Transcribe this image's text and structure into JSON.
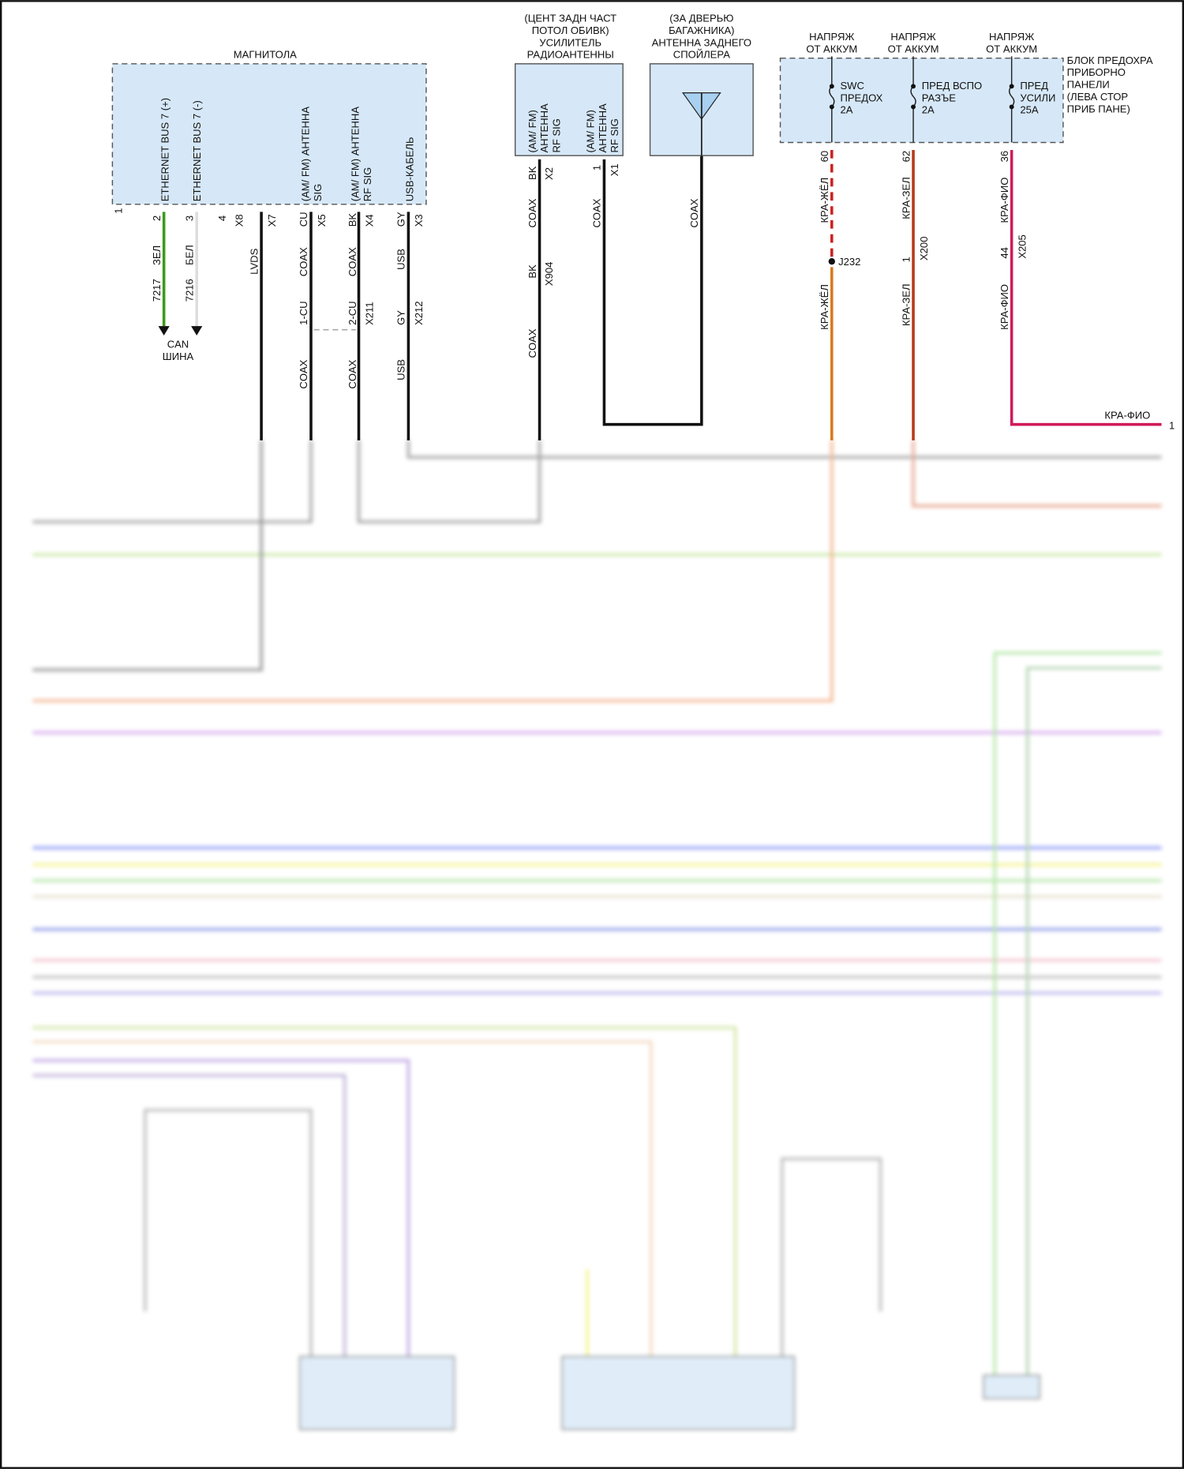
{
  "head_unit": {
    "title": "МАГНИТОЛА",
    "pins": [
      {
        "label": "ETHERNET BUS 7 (+)"
      },
      {
        "label": "ETHERNET BUS 7 (-)"
      },
      {
        "label": "(AM/ FM) АНТЕННА",
        "label2": "SIG"
      },
      {
        "label": "(AM/ FM) АНТЕННА",
        "label2": "RF SIG"
      },
      {
        "label": "USB-КАБЕЛЬ"
      }
    ],
    "connectors": {
      "p1": "1",
      "p2": "2",
      "p3": "3",
      "p4": "4",
      "x8": "X8",
      "x7": "X7",
      "cu": "CU",
      "x5": "X5",
      "bk": "BK",
      "x4": "X4",
      "gy": "GY",
      "x3": "X3"
    },
    "wires": {
      "zel": "ЗЕЛ",
      "bel": "БЕЛ",
      "c7217": "7217",
      "c7216": "7216",
      "lvds": "LVDS",
      "coax": "COAX",
      "usb": "USB",
      "cu1": "1-CU",
      "cu2": "2-CU",
      "x211": "X211",
      "gy": "GY",
      "x212": "X212"
    },
    "can": [
      "CAN",
      "ШИНА"
    ]
  },
  "amplifier": {
    "title": [
      "(ЦЕНТ ЗАДН ЧАСТ",
      "ПОТОЛ ОБИВК)",
      "УСИЛИТЕЛЬ",
      "РАДИОАНТЕННЫ"
    ],
    "pins": [
      [
        "(AM/ FM)",
        "АНТЕННА",
        "RF SIG"
      ],
      [
        "(AM/ FM)",
        "АНТЕННА",
        "RF SIG"
      ]
    ],
    "bk": "BK",
    "x2": "X2",
    "p1": "1",
    "x1": "X1",
    "coax": "COAX",
    "x904": "X904"
  },
  "antenna": {
    "title": [
      "(ЗА ДВЕРЬЮ",
      "БАГАЖНИКА)",
      "АНТЕННА ЗАДНЕГО",
      "СПОЙЛЕРА"
    ],
    "coax": "COAX"
  },
  "fuse_block": {
    "title": [
      "БЛОК ПРЕДОХРА",
      "ПРИБОРНО",
      "ПАНЕЛИ",
      "(ЛЕВА СТОР",
      "ПРИБ ПАНЕ)"
    ],
    "supply": [
      "НАПРЯЖ",
      "ОТ АККУМ"
    ],
    "fuses": [
      {
        "name": [
          "SWC",
          "ПРЕДОХ",
          "2A"
        ],
        "pin": "60",
        "wire": "КРА-ЖЁЛ",
        "splice": "J232",
        "color": "#cc2222",
        "color2": "#e08a2a"
      },
      {
        "name": [
          "ПРЕД ВСПО",
          "РАЗЪЕ",
          "2A"
        ],
        "pin": "62",
        "wire": "КРА-ЗЕЛ",
        "conn_pin": "1",
        "conn": "X200",
        "color": "#b83a1a"
      },
      {
        "name": [
          "ПРЕД",
          "УСИЛИ",
          "25A"
        ],
        "pin": "36",
        "wire": "КРА-ФИО",
        "conn_pin": "44",
        "conn": "X205",
        "color": "#d01a5a",
        "dest": "1"
      }
    ]
  }
}
